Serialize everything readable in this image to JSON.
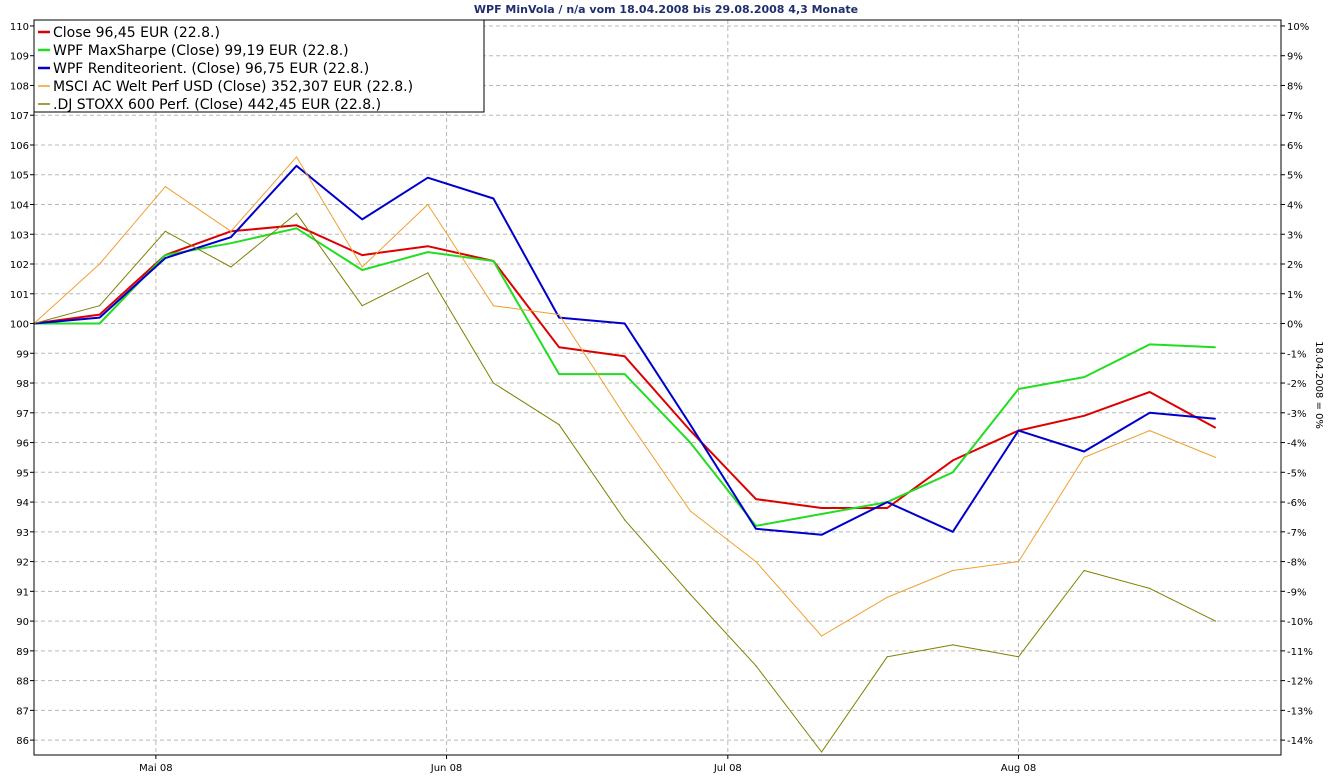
{
  "chart_data": {
    "type": "line",
    "title": "WPF MinVola / n/a vom 18.04.2008 bis 29.08.2008 4,3 Monate",
    "ylabel_right": "18.04.2008 = 0%",
    "left_ticks": [
      "110",
      "109",
      "108",
      "107",
      "106",
      "105",
      "104",
      "103",
      "102",
      "101",
      "100",
      "99",
      "98",
      "97",
      "96",
      "95",
      "94",
      "93",
      "92",
      "91",
      "90",
      "89",
      "88",
      "87",
      "86"
    ],
    "right_ticks": [
      "10%",
      "9%",
      "8%",
      "7%",
      "6%",
      "5%",
      "4%",
      "3%",
      "2%",
      "1%",
      "0%",
      "-1%",
      "-2%",
      "-3%",
      "-4%",
      "-5%",
      "-6%",
      "-7%",
      "-8%",
      "-9%",
      "-10%",
      "-11%",
      "-12%",
      "-13%",
      "-14%"
    ],
    "x_tick_labels": [
      "Mai 08",
      "Jun 08",
      "Jul 08",
      "Aug 08"
    ],
    "x_tick_dates": [
      "2008-05-01",
      "2008-06-01",
      "2008-07-01",
      "2008-08-01"
    ],
    "x_range": [
      "2008-04-18",
      "2008-08-29"
    ],
    "ylim": [
      85.5,
      110.2
    ],
    "grid": true,
    "legend_position": "top-left",
    "x": [
      "2008-04-18",
      "2008-04-25",
      "2008-05-02",
      "2008-05-09",
      "2008-05-16",
      "2008-05-23",
      "2008-05-30",
      "2008-06-06",
      "2008-06-13",
      "2008-06-20",
      "2008-06-27",
      "2008-07-04",
      "2008-07-11",
      "2008-07-18",
      "2008-07-25",
      "2008-08-01",
      "2008-08-08",
      "2008-08-15",
      "2008-08-22"
    ],
    "series": [
      {
        "name": "Close 96,45 EUR (22.8.)",
        "color": "#dd0000",
        "width": 2,
        "values": [
          100,
          100.3,
          102.3,
          103.1,
          103.3,
          102.3,
          102.6,
          102.1,
          99.2,
          98.9,
          96.4,
          94.1,
          93.8,
          93.8,
          95.4,
          96.4,
          96.9,
          97.7,
          96.5
        ]
      },
      {
        "name": "WPF MaxSharpe (Close) 99,19 EUR (22.8.)",
        "color": "#22dd22",
        "width": 2,
        "values": [
          100,
          100.0,
          102.3,
          102.7,
          103.2,
          101.8,
          102.4,
          102.1,
          98.3,
          98.3,
          96.0,
          93.2,
          93.6,
          94.0,
          95.0,
          97.8,
          98.2,
          99.3,
          99.2
        ]
      },
      {
        "name": "WPF Renditeorient. (Close) 96,75 EUR (22.8.)",
        "color": "#0000cc",
        "width": 2,
        "values": [
          100,
          100.2,
          102.2,
          102.9,
          105.3,
          103.5,
          104.9,
          104.2,
          100.2,
          100.0,
          96.6,
          93.1,
          92.9,
          94.0,
          93.0,
          96.4,
          95.7,
          97.0,
          96.8
        ]
      },
      {
        "name": "MSCI AC Welt Perf USD (Close) 352,307 EUR (22.8.)",
        "color": "#f0a030",
        "width": 1,
        "values": [
          100,
          102.0,
          104.6,
          103.1,
          105.6,
          101.9,
          104.0,
          100.6,
          100.3,
          96.9,
          93.7,
          92.0,
          89.5,
          90.8,
          91.7,
          92.0,
          95.5,
          96.4,
          95.5
        ]
      },
      {
        "name": ".DJ STOXX 600 Perf. (Close) 442,45 EUR (22.8.)",
        "color": "#808000",
        "width": 1,
        "values": [
          100,
          100.6,
          103.1,
          101.9,
          103.7,
          100.6,
          101.7,
          98.0,
          96.6,
          93.4,
          90.9,
          88.5,
          85.6,
          88.8,
          89.2,
          88.8,
          91.7,
          91.1,
          90.0
        ]
      }
    ]
  }
}
